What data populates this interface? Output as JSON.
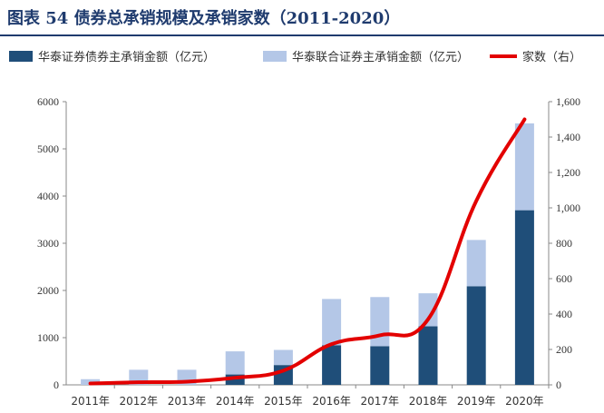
{
  "figure_title": "图表 54 债券总承销规模及承销家数（2011-2020）",
  "colors": {
    "bar_primary": "#1f4e79",
    "bar_secondary": "#b4c7e7",
    "line": "#e30000",
    "title": "#1f3b6e"
  },
  "chart_data": {
    "type": "bar",
    "categories": [
      "2011年",
      "2012年",
      "2013年",
      "2014年",
      "2015年",
      "2016年",
      "2017年",
      "2018年",
      "2019年",
      "2020年"
    ],
    "series": [
      {
        "name": "华泰证券债券主承销金额（亿元）",
        "kind": "bar",
        "axis": "left",
        "values": [
          0,
          0,
          0,
          220,
          420,
          840,
          820,
          1240,
          2090,
          3700
        ]
      },
      {
        "name": "华泰联合证券主承销金额（亿元）",
        "kind": "bar",
        "axis": "left",
        "values": [
          120,
          320,
          320,
          490,
          320,
          980,
          1040,
          700,
          980,
          1840
        ]
      },
      {
        "name": "家数（右）",
        "kind": "line",
        "axis": "right",
        "values": [
          8,
          15,
          18,
          40,
          80,
          230,
          280,
          370,
          1040,
          1500
        ]
      }
    ],
    "left_axis": {
      "min": 0,
      "max": 6000,
      "ticks": [
        "0",
        "1000",
        "2000",
        "3000",
        "4000",
        "5000",
        "6000"
      ]
    },
    "right_axis": {
      "min": 0,
      "max": 1600,
      "ticks": [
        "0",
        "200",
        "400",
        "600",
        "800",
        "1,000",
        "1,200",
        "1,400",
        "1,600"
      ]
    },
    "legend_position": "top",
    "grid": false
  }
}
